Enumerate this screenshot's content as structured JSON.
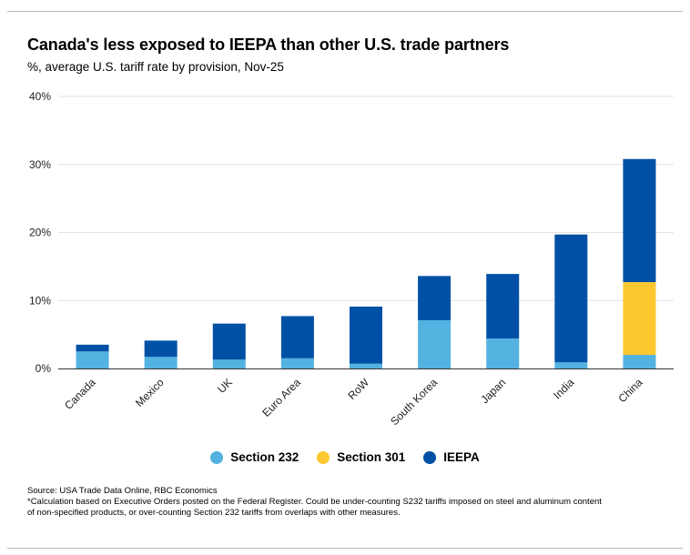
{
  "header": {
    "title": "Canada's less exposed to IEEPA than other U.S. trade partners",
    "subtitle": "%, average U.S. tariff rate by provision, Nov-25"
  },
  "footnote": {
    "source": "Source: USA Trade Data Online, RBC Economics",
    "note": "*Calculation based on Executive Orders posted on the Federal Register. Could be under-counting S232 tariffs imposed on steel and aluminum content of non-specified products, or over-counting Section 232 tariffs from overlaps with other measures."
  },
  "chart_data": {
    "type": "bar",
    "stacked": true,
    "title": "Canada's less exposed to IEEPA than other U.S. trade partners",
    "subtitle": "%, average U.S. tariff rate by provision, Nov-25",
    "xlabel": "",
    "ylabel": "",
    "ylim": [
      0,
      40
    ],
    "yticks": [
      0,
      10,
      20,
      30,
      40
    ],
    "ytick_labels": [
      "0%",
      "10%",
      "20%",
      "30%",
      "40%"
    ],
    "grid": true,
    "legend_position": "bottom",
    "categories": [
      "Canada",
      "Mexico",
      "UK",
      "Euro Area",
      "RoW",
      "South Korea",
      "Japan",
      "India",
      "China"
    ],
    "series": [
      {
        "name": "Section 232",
        "color": "#53b2e0",
        "values": [
          2.5,
          1.7,
          1.3,
          1.5,
          0.7,
          7.1,
          4.4,
          0.9,
          2.0
        ]
      },
      {
        "name": "Section 301",
        "color": "#fdc82f",
        "values": [
          0,
          0,
          0,
          0,
          0,
          0,
          0,
          0,
          10.7
        ]
      },
      {
        "name": "IEEPA",
        "color": "#0051a5",
        "values": [
          1.0,
          2.4,
          5.3,
          6.2,
          8.4,
          6.5,
          9.5,
          18.8,
          18.1
        ]
      }
    ]
  }
}
